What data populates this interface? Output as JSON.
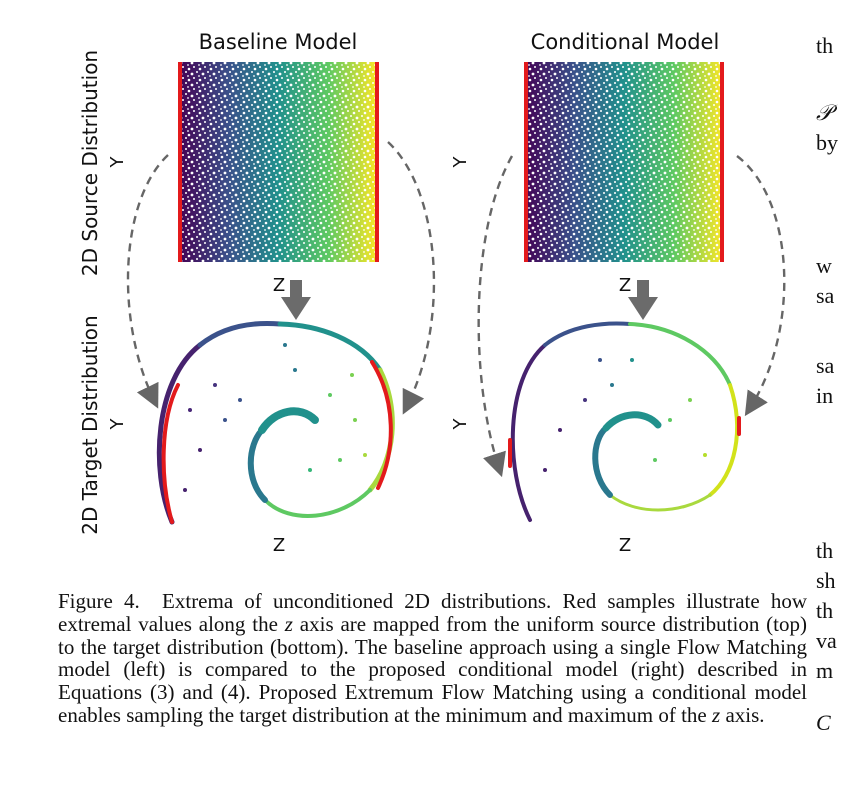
{
  "figure": {
    "panels": [
      {
        "title": "Baseline Model"
      },
      {
        "title": "Conditional Model"
      }
    ],
    "row_labels": [
      "2D Source Distribution",
      "2D Target Distribution"
    ],
    "axis_labels": {
      "y": "Y",
      "z": "Z"
    },
    "colormap": [
      "#440154",
      "#3b528b",
      "#21918c",
      "#5ec962",
      "#fde725"
    ],
    "highlight_color": "#e31a1c"
  },
  "caption": {
    "label": "Figure 4.",
    "part1": "Extrema of unconditioned 2D distributions. Red samples illustrate how extremal values along the",
    "var1": "z",
    "part2": "axis are mapped from the uniform source distribution (top) to the target distribution (bottom). The baseline approach using a single Flow Matching model (left) is compared to the proposed conditional model (right) described in Equations (3) and (4). Proposed Extremum Flow Matching using a conditional model enables sampling the target distribution at the minimum and maximum of the",
    "var2": "z",
    "part3": "axis."
  },
  "right_column_fragments": [
    "th",
    "𝒫",
    "by",
    "w",
    "sa",
    "sa",
    "in",
    "th",
    "sh",
    "th",
    "va",
    "m",
    "C"
  ]
}
